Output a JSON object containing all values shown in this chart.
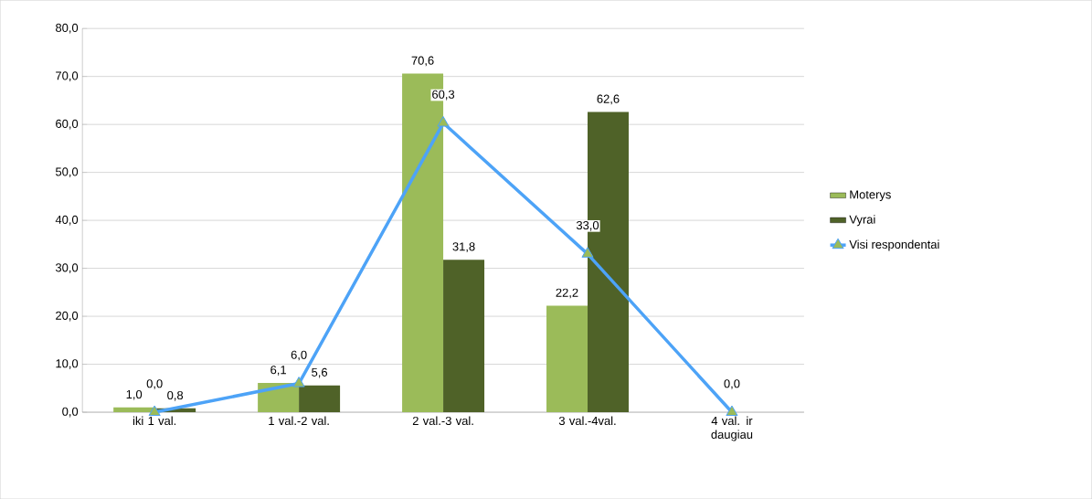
{
  "chart_data": {
    "type": "bar",
    "categories": [
      "iki 1 val.",
      "1 val.-2 val.",
      "2 val.-3 val.",
      "3 val.-4val.",
      "4 val. ir daugiau"
    ],
    "series": [
      {
        "name": "Moterys",
        "color": "#9bbb59",
        "values": [
          1.0,
          6.1,
          70.6,
          22.2,
          null
        ],
        "value_labels": [
          "1,0",
          "6,1",
          "70,6",
          "22,2",
          null
        ]
      },
      {
        "name": "Vyrai",
        "color": "#4f6228",
        "values": [
          0.8,
          5.6,
          31.8,
          62.6,
          null
        ],
        "value_labels": [
          "0,8",
          "5,6",
          "31,8",
          "62,6",
          null
        ]
      },
      {
        "name": "Visi respondentai",
        "type": "line",
        "color": "#4da3f7",
        "marker": "triangle",
        "values": [
          0.0,
          6.0,
          60.3,
          33.0,
          0.0
        ],
        "value_labels": [
          "0,0",
          "6,0",
          "60,3",
          "33,0",
          "0,0"
        ]
      }
    ],
    "ylim": [
      0,
      80
    ],
    "yticks": [
      {
        "value": 0,
        "label": "0,0"
      },
      {
        "value": 10,
        "label": "10,0"
      },
      {
        "value": 20,
        "label": "20,0"
      },
      {
        "value": 30,
        "label": "30,0"
      },
      {
        "value": 40,
        "label": "40,0"
      },
      {
        "value": 50,
        "label": "50,0"
      },
      {
        "value": 60,
        "label": "60,0"
      },
      {
        "value": 70,
        "label": "70,0"
      },
      {
        "value": 80,
        "label": "80,0"
      }
    ],
    "grid": "y",
    "legend": "right"
  }
}
